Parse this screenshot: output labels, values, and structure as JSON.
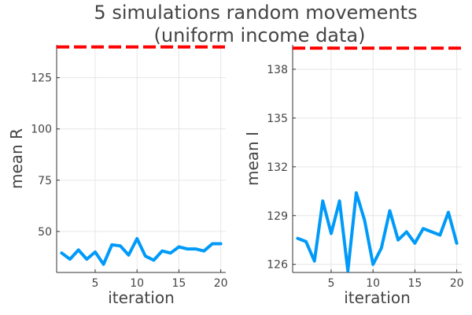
{
  "colors": {
    "series": "#009AF9",
    "reference": "#FF0000",
    "text": "#444444",
    "grid": "#E6E6E6",
    "axis": "#333333"
  },
  "figure": {
    "title_line1": "5 simulations random movements",
    "title_line2": "(uniform income data)"
  },
  "chart_data": [
    {
      "type": "line",
      "title": "",
      "xlabel": "iteration",
      "ylabel": "mean R",
      "xlim": [
        0.4,
        20.6
      ],
      "ylim": [
        30,
        141
      ],
      "xticks": [
        5,
        10,
        15,
        20
      ],
      "yticks": [
        50,
        75,
        100,
        125
      ],
      "ytick_labels": [
        "50",
        "75",
        "100",
        "125"
      ],
      "grid": true,
      "legend": "none",
      "reference_line": {
        "y": 140,
        "style": "dashed"
      },
      "x": [
        1,
        2,
        3,
        4,
        5,
        6,
        7,
        8,
        9,
        10,
        11,
        12,
        13,
        14,
        15,
        16,
        17,
        18,
        19,
        20
      ],
      "values": [
        39.5,
        36.5,
        41,
        36.5,
        40,
        34,
        43.5,
        43,
        38.5,
        46.5,
        38,
        36,
        40.5,
        39.5,
        42.5,
        41.5,
        41.5,
        40.5,
        44,
        44
      ]
    },
    {
      "type": "line",
      "title": "",
      "xlabel": "iteration",
      "ylabel": "mean I",
      "xlim": [
        0.4,
        20.6
      ],
      "ylim": [
        125.5,
        139.5
      ],
      "xticks": [
        5,
        10,
        15,
        20
      ],
      "yticks": [
        126,
        129,
        132,
        135,
        138
      ],
      "ytick_labels": [
        "126",
        "129",
        "132",
        "135",
        "138"
      ],
      "grid": true,
      "legend": "none",
      "reference_line": {
        "y": 139.3,
        "style": "dashed"
      },
      "x": [
        1,
        2,
        3,
        4,
        5,
        6,
        7,
        8,
        9,
        10,
        11,
        12,
        13,
        14,
        15,
        16,
        17,
        18,
        19,
        20
      ],
      "values": [
        127.6,
        127.4,
        126.2,
        129.9,
        127.9,
        129.9,
        125.6,
        130.4,
        128.7,
        126,
        127,
        129.3,
        127.5,
        128,
        127.3,
        128.2,
        128,
        127.8,
        129.2,
        127.3
      ]
    }
  ]
}
